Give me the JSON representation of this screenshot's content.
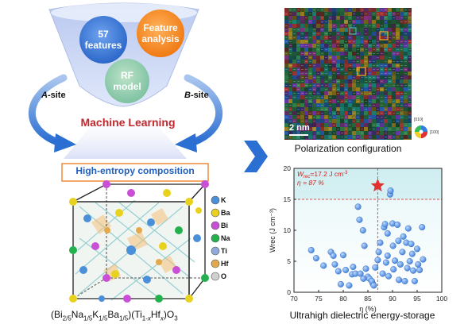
{
  "funnel": {
    "bubble_features": "57\nfeatures",
    "bubble_features_l1": "57",
    "bubble_features_l2": "features",
    "bubble_analysis_l1": "Feature",
    "bubble_analysis_l2": "analysis",
    "bubble_rf_l1": "RF",
    "bubble_rf_l2": "model"
  },
  "labels": {
    "a_site_italic": "A",
    "a_site_rest": "-site",
    "b_site_italic": "B",
    "b_site_rest": "-site",
    "machine_learning": "Machine Learning",
    "high_entropy": "High-entropy composition"
  },
  "legend": {
    "items": [
      {
        "label": "K",
        "color": "#4a90d9"
      },
      {
        "label": "Ba",
        "color": "#e8d21e"
      },
      {
        "label": "Bi",
        "color": "#c84fd6"
      },
      {
        "label": "Na",
        "color": "#22b14c"
      },
      {
        "label": "Ti",
        "color": "#8fa9d9"
      },
      {
        "label": "Hf",
        "color": "#e3a94a"
      },
      {
        "label": "O",
        "color": "#d0d0d0"
      }
    ]
  },
  "formula": {
    "p1": "(Bi",
    "s1": "2/5",
    "p2": "Na",
    "s2": "1/5",
    "p3": "K",
    "s3": "1/5",
    "p4": "Ba",
    "s4": "1/5",
    "p5": ")(Ti",
    "s5": "1-",
    "s5i": "x",
    "p6": "Hf",
    "s6i": "x",
    "p7": ")O",
    "s7": "3"
  },
  "polarization": {
    "scale_label": "2 nm",
    "caption": "Polarization configuration",
    "wheel_top": "[010]",
    "wheel_right": "[100]"
  },
  "caption_energy": "Ultrahigh dielectric energy-storage",
  "chart_data": {
    "type": "scatter",
    "xlabel": "η (%)",
    "ylabel": "Wrec (J cm⁻³)",
    "xlim": [
      70,
      100
    ],
    "ylim": [
      0,
      20
    ],
    "xticks": [
      70,
      75,
      80,
      85,
      90,
      95,
      100
    ],
    "yticks": [
      0,
      5,
      10,
      15,
      20
    ],
    "annotation_w": "W",
    "annotation_w_sub": "rec",
    "annotation_w_rest": "=17.2 J cm",
    "annotation_w_sup": "-3",
    "annotation_eta": "η = 87 %",
    "highlight": {
      "x": 87,
      "y": 17.2,
      "marker": "star",
      "color": "#e03030"
    },
    "guide_lines": {
      "x": 87,
      "y": 15
    },
    "series": [
      {
        "color": "#3f7fd8",
        "points": [
          [
            73.5,
            6.8
          ],
          [
            74.5,
            5.5
          ],
          [
            76,
            4.3
          ],
          [
            77.5,
            6.5
          ],
          [
            78,
            5.9
          ],
          [
            78.3,
            4.5
          ],
          [
            79,
            3.4
          ],
          [
            79.5,
            1.3
          ],
          [
            80,
            6.0
          ],
          [
            80.5,
            3.6
          ],
          [
            81.2,
            1.1
          ],
          [
            81.8,
            2.9
          ],
          [
            82,
            4.1
          ],
          [
            82.5,
            3.0
          ],
          [
            83,
            13.8
          ],
          [
            83.3,
            11.7
          ],
          [
            83.5,
            3.0
          ],
          [
            84,
            10.0
          ],
          [
            84.3,
            7.5
          ],
          [
            84.6,
            3.8
          ],
          [
            85,
            2.5
          ],
          [
            85.3,
            2.2
          ],
          [
            86,
            1.4
          ],
          [
            86.5,
            4.0
          ],
          [
            87,
            5.2
          ],
          [
            87.2,
            6.5
          ],
          [
            87.5,
            8.0
          ],
          [
            88,
            3.0
          ],
          [
            88.3,
            10.5
          ],
          [
            88.5,
            11.0
          ],
          [
            88.7,
            4.8
          ],
          [
            89,
            9.5
          ],
          [
            89,
            5.9
          ],
          [
            89.2,
            2.6
          ],
          [
            89.5,
            15.8
          ],
          [
            89.6,
            16.4
          ],
          [
            90,
            11.1
          ],
          [
            90.1,
            7.5
          ],
          [
            90.2,
            3.7
          ],
          [
            90.5,
            5.1
          ],
          [
            91,
            10.9
          ],
          [
            91.2,
            8.3
          ],
          [
            91.3,
            2.0
          ],
          [
            91.6,
            4.5
          ],
          [
            92,
            6.5
          ],
          [
            92.2,
            9.0
          ],
          [
            92.5,
            1.8
          ],
          [
            92.8,
            8.0
          ],
          [
            93,
            3.9
          ],
          [
            93.2,
            10.3
          ],
          [
            93.5,
            5.0
          ],
          [
            93.8,
            7.8
          ],
          [
            94,
            6.2
          ],
          [
            94.2,
            3.5
          ],
          [
            94.5,
            1.8
          ],
          [
            95,
            7.0
          ],
          [
            95.2,
            4.5
          ],
          [
            95.5,
            3.6
          ],
          [
            96,
            10.5
          ],
          [
            96.2,
            5.3
          ],
          [
            85.8,
            1.8
          ],
          [
            86.2,
            1.1
          ],
          [
            84.1,
            2.2
          ]
        ]
      }
    ]
  }
}
